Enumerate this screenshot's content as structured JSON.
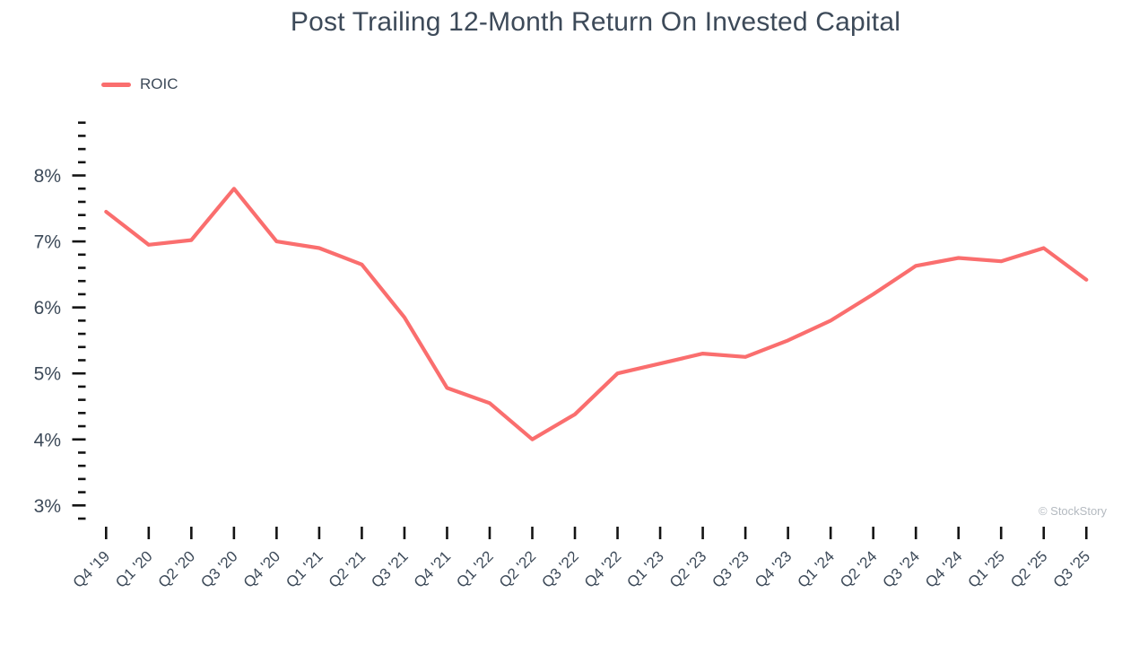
{
  "title": "Post Trailing 12-Month Return On Invested Capital",
  "legend": {
    "label": "ROIC",
    "color": "#fa6e6e"
  },
  "watermark": "© StockStory",
  "colors": {
    "line": "#fa6e6e",
    "text": "#3d4a59",
    "tick": "#141414",
    "background": "#ffffff",
    "watermark": "#b4bac0"
  },
  "chart_data": {
    "type": "line",
    "title": "Post Trailing 12-Month Return On Invested Capital",
    "xlabel": "",
    "ylabel": "",
    "grid": false,
    "legend_position": "top-left",
    "x_label_rotation_deg": 45,
    "categories": [
      "Q4 '19",
      "Q1 '20",
      "Q2 '20",
      "Q3 '20",
      "Q4 '20",
      "Q1 '21",
      "Q2 '21",
      "Q3 '21",
      "Q4 '21",
      "Q1 '22",
      "Q2 '22",
      "Q3 '22",
      "Q4 '22",
      "Q1 '23",
      "Q2 '23",
      "Q3 '23",
      "Q4 '23",
      "Q1 '24",
      "Q2 '24",
      "Q3 '24",
      "Q4 '24",
      "Q1 '25",
      "Q2 '25",
      "Q3 '25"
    ],
    "series": [
      {
        "name": "ROIC",
        "color": "#fa6e6e",
        "values": [
          7.45,
          6.95,
          7.02,
          7.8,
          7.0,
          6.9,
          6.65,
          5.85,
          4.78,
          4.55,
          4.0,
          4.38,
          5.0,
          5.15,
          5.3,
          5.25,
          5.5,
          5.8,
          6.2,
          6.63,
          6.75,
          6.7,
          6.9,
          6.42
        ]
      }
    ],
    "ylim": [
      2.8,
      8.8
    ],
    "y_ticks_major": [
      3,
      4,
      5,
      6,
      7,
      8
    ],
    "y_tick_labels": [
      "3%",
      "4%",
      "5%",
      "6%",
      "7%",
      "8%"
    ],
    "y_minor_tick_step": 0.2,
    "unit": "%"
  }
}
